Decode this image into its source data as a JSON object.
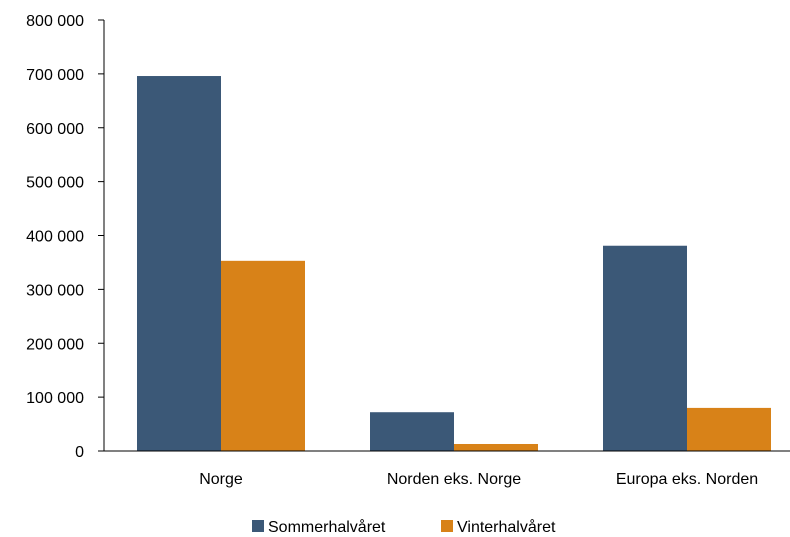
{
  "chart_data": {
    "type": "bar",
    "categories": [
      "Norge",
      "Norden eks. Norge",
      "Europa eks. Norden"
    ],
    "series": [
      {
        "name": "Sommerhalvåret",
        "color": "#3b5877",
        "values": [
          696000,
          72000,
          381000
        ]
      },
      {
        "name": "Vinterhalvåret",
        "color": "#d88218",
        "values": [
          353000,
          13000,
          80000
        ]
      }
    ],
    "ylim": [
      0,
      800000
    ],
    "yticks": [
      0,
      100000,
      200000,
      300000,
      400000,
      500000,
      600000,
      700000,
      800000
    ],
    "ytick_labels": [
      "0",
      "100 000",
      "200 000",
      "300 000",
      "400 000",
      "500 000",
      "600 000",
      "700 000",
      "800 000"
    ],
    "grid": false,
    "legend_position": "bottom-center"
  }
}
